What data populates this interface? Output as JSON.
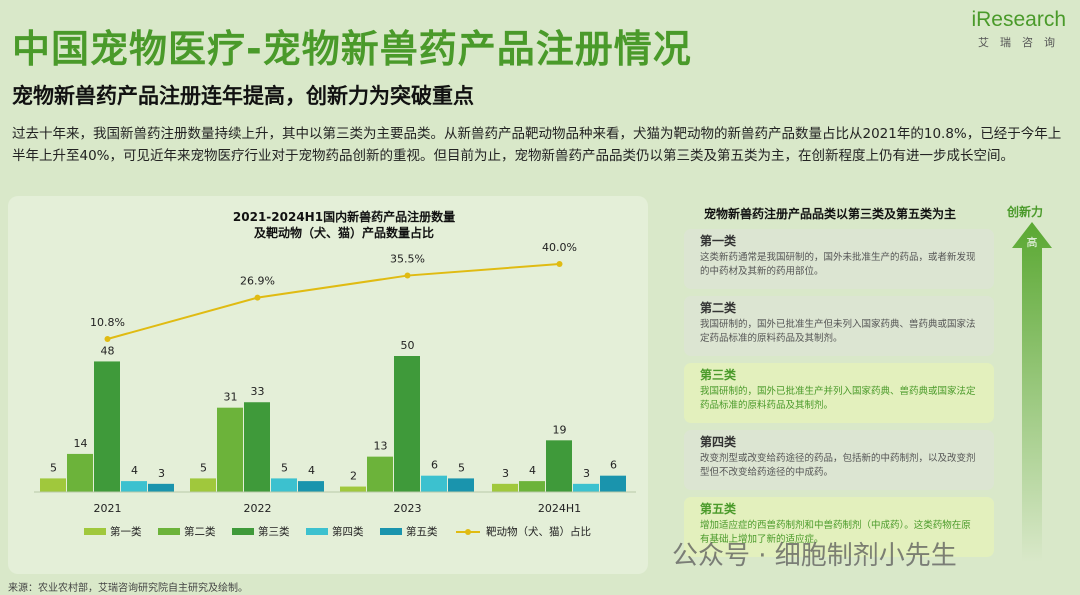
{
  "header": {
    "title": "中国宠物医疗-宠物新兽药产品注册情况",
    "logo": "iResearch",
    "logo_sub": "艾瑞咨询"
  },
  "subtitle": "宠物新兽药产品注册连年提高，创新力为突破重点",
  "description": "过去十年来，我国新兽药注册数量持续上升，其中以第三类为主要品类。从新兽药产品靶动物品种来看，犬猫为靶动物的新兽药产品数量占比从2021年的10.8%，已经于今年上半年上升至40%，可见近年来宠物医疗行业对于宠物药品创新的重视。但目前为止，宠物新兽药产品品类仍以第三类及第五类为主，在创新程度上仍有进一步成长空间。",
  "chart_data": {
    "type": "bar",
    "title": "2021-2024H1国内新兽药产品注册数量",
    "subtitle": "及靶动物（犬、猫）产品数量占比",
    "categories": [
      "2021",
      "2022",
      "2023",
      "2024H1"
    ],
    "series": [
      {
        "name": "第一类",
        "values": [
          5,
          5,
          2,
          3
        ],
        "color": "#a0c83c"
      },
      {
        "name": "第二类",
        "values": [
          14,
          31,
          13,
          4
        ],
        "color": "#6cb33a"
      },
      {
        "name": "第三类",
        "values": [
          48,
          33,
          50,
          19
        ],
        "color": "#3f9a3a"
      },
      {
        "name": "第四类",
        "values": [
          4,
          5,
          6,
          3
        ],
        "color": "#3cc1cf"
      },
      {
        "name": "第五类",
        "values": [
          3,
          4,
          5,
          6
        ],
        "color": "#1a94ad"
      }
    ],
    "line": {
      "name": "靶动物（犬、猫）占比",
      "values": [
        10.8,
        26.9,
        35.5,
        40.0
      ],
      "labels": [
        "10.8%",
        "26.9%",
        "35.5%",
        "40.0%"
      ],
      "color": "#e0bb12"
    },
    "ylim": [
      0,
      50
    ],
    "legend": "bottom"
  },
  "classes": {
    "title": "宠物新兽药注册产品品类以第三类及第五类为主",
    "items": [
      {
        "name": "第一类",
        "desc": "这类新药通常是我国研制的，国外未批准生产的药品，或者新发现的中药材及其新的药用部位。"
      },
      {
        "name": "第二类",
        "desc": "我国研制的，国外已批准生产但未列入国家药典、兽药典或国家法定药品标准的原料药品及其制剂。"
      },
      {
        "name": "第三类",
        "desc": "我国研制的，国外已批准生产并列入国家药典、兽药典或国家法定药品标准的原料药品及其制剂。"
      },
      {
        "name": "第四类",
        "desc": "改变剂型或改变给药途径的药品，包括新的中药制剂，以及改变剂型但不改变给药途径的中成药。"
      },
      {
        "name": "第五类",
        "desc": "增加适应症的西兽药制剂和中兽药制剂（中成药）。这类药物在原有基础上增加了新的适应症。"
      }
    ],
    "arrow_label": "创新力",
    "arrow_text": "高"
  },
  "watermark": "公众号 · 细胞制剂小先生",
  "source": "来源：农业农村部，艾瑞咨询研究院自主研究及绘制。"
}
